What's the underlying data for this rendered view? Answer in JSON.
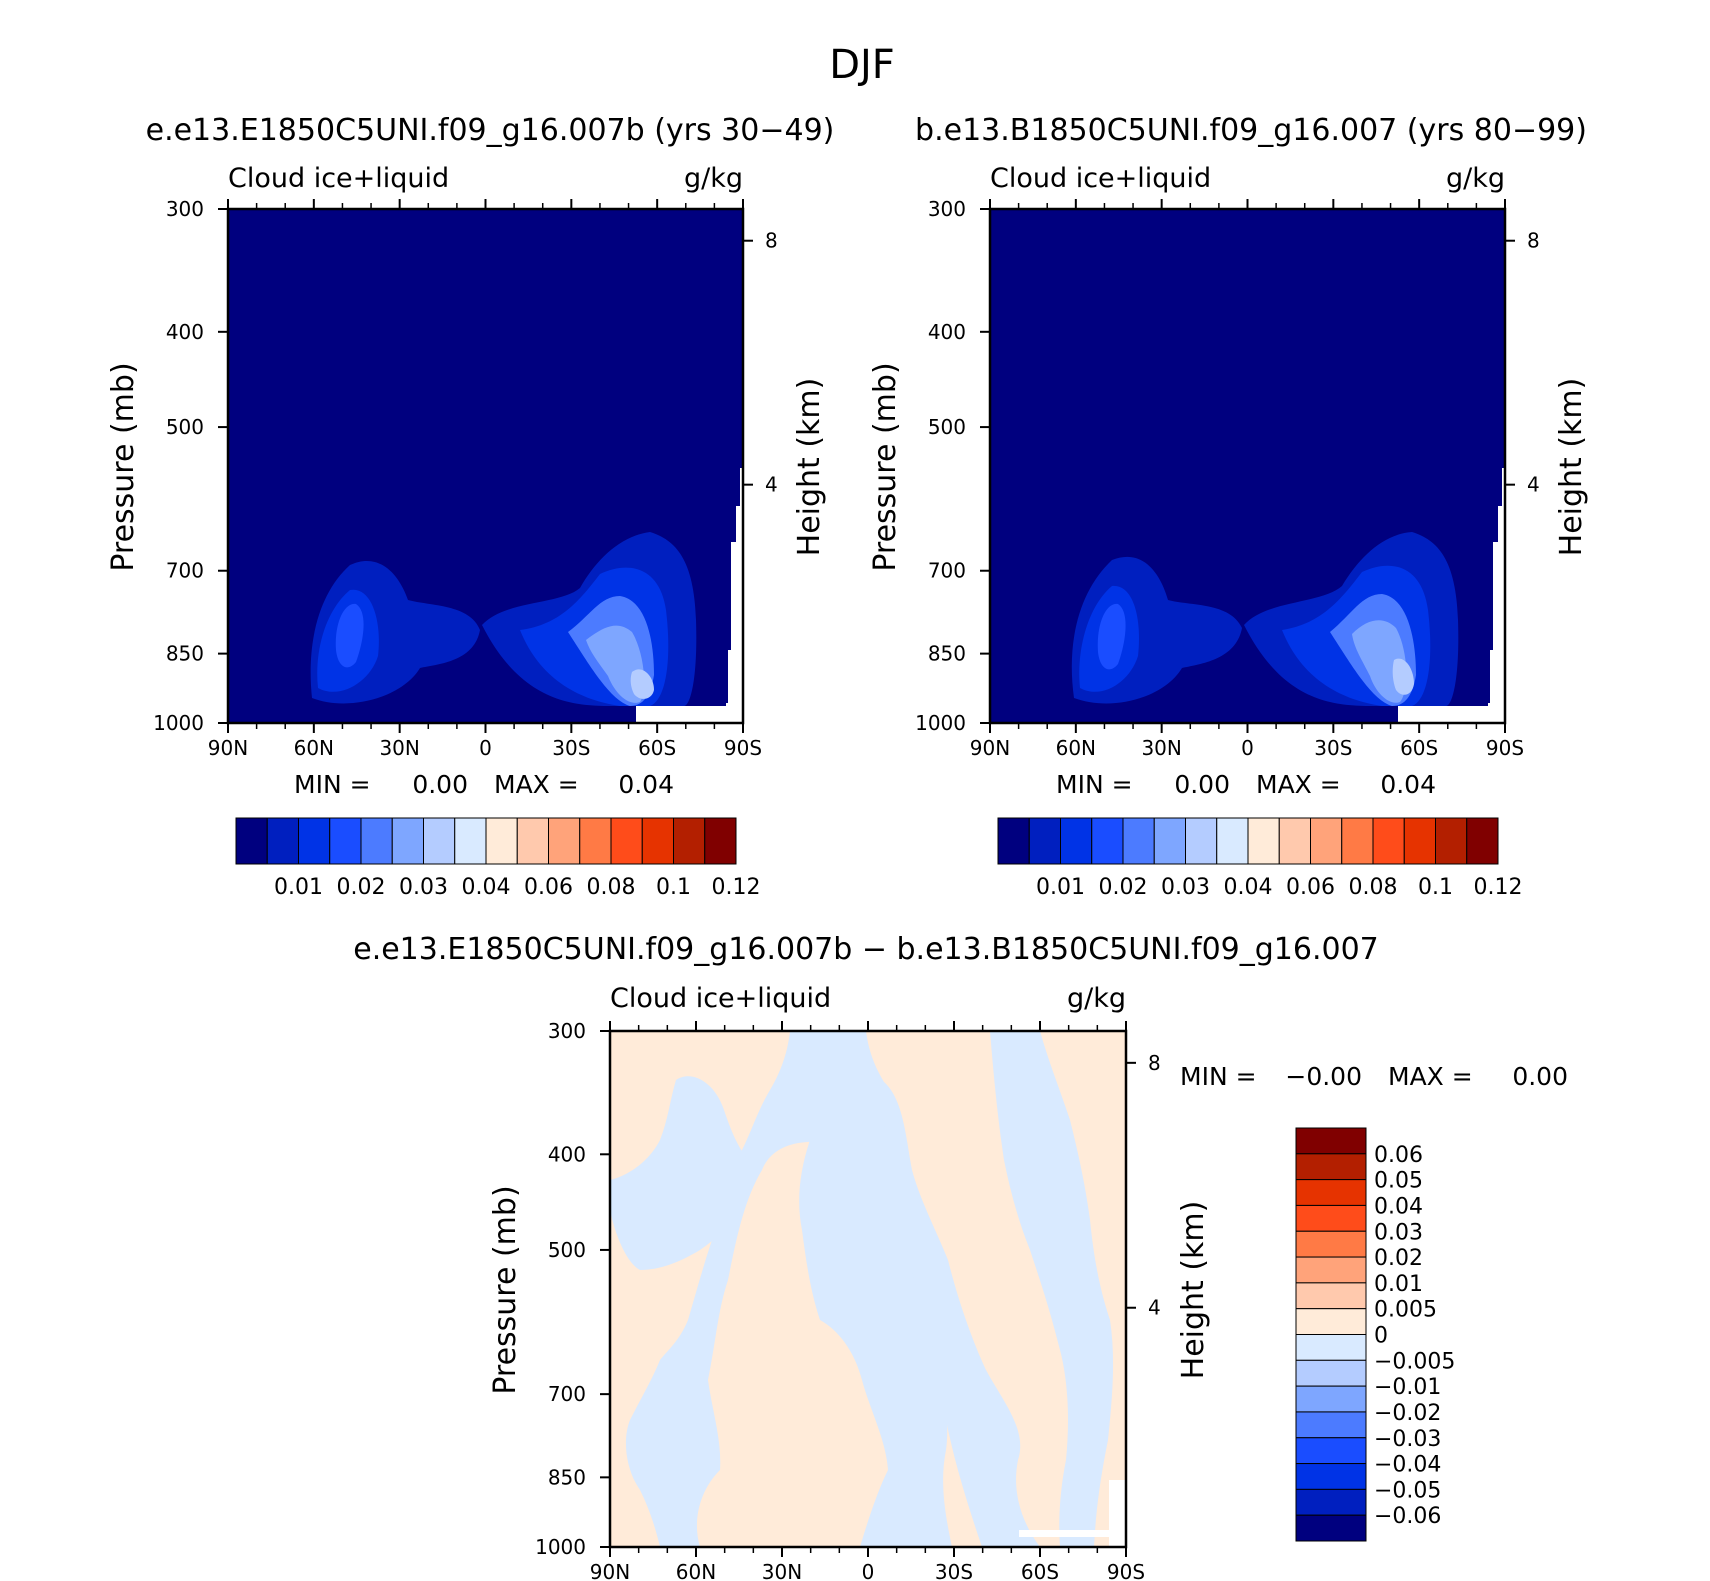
{
  "figure": {
    "title": "DJF"
  },
  "chart_data": [
    {
      "type": "heatmap",
      "panel_title": "e.e13.E1850C5UNI.f09_g16.007b (yrs 30−49)",
      "title": "Cloud ice+liquid",
      "units": "g/kg",
      "xlabel": "",
      "ylabel": "Pressure (mb)",
      "ylabel_right": "Height (km)",
      "x_ticks": [
        "90N",
        "60N",
        "30N",
        "0",
        "30S",
        "60S",
        "90S"
      ],
      "y_ticks": [
        300,
        400,
        500,
        700,
        850,
        1000
      ],
      "y_scale": "log",
      "ylim": [
        300,
        1000
      ],
      "height_ticks": [
        8,
        4
      ],
      "stats": {
        "min_label": "MIN =",
        "min": "0.00",
        "max_label": "MAX =",
        "max": "0.04"
      },
      "colorbar": {
        "orientation": "horizontal",
        "labels": [
          "0.01",
          "0.02",
          "0.03",
          "0.04",
          "0.06",
          "0.08",
          "0.1",
          "0.12"
        ],
        "colors": [
          "#00007f",
          "#001fbf",
          "#0033e6",
          "#1a4dff",
          "#4c7bff",
          "#7ea6ff",
          "#b4ccff",
          "#d9eaff",
          "#ffebd9",
          "#ffc9ad",
          "#ffa37a",
          "#ff7a45",
          "#ff4c1a",
          "#e63300",
          "#b31f00",
          "#800000"
        ]
      },
      "features": [
        {
          "lat": -50,
          "p": 900,
          "value": 0.04
        },
        {
          "lat": -45,
          "p": 865,
          "value": 0.035
        },
        {
          "lat": 43,
          "p": 870,
          "value": 0.02
        }
      ]
    },
    {
      "type": "heatmap",
      "panel_title": "b.e13.B1850C5UNI.f09_g16.007 (yrs 80−99)",
      "title": "Cloud ice+liquid",
      "units": "g/kg",
      "xlabel": "",
      "ylabel": "Pressure (mb)",
      "ylabel_right": "Height (km)",
      "x_ticks": [
        "90N",
        "60N",
        "30N",
        "0",
        "30S",
        "60S",
        "90S"
      ],
      "y_ticks": [
        300,
        400,
        500,
        700,
        850,
        1000
      ],
      "y_scale": "log",
      "ylim": [
        300,
        1000
      ],
      "height_ticks": [
        8,
        4
      ],
      "stats": {
        "min_label": "MIN =",
        "min": "0.00",
        "max_label": "MAX =",
        "max": "0.04"
      },
      "colorbar": {
        "orientation": "horizontal",
        "labels": [
          "0.01",
          "0.02",
          "0.03",
          "0.04",
          "0.06",
          "0.08",
          "0.1",
          "0.12"
        ],
        "colors": [
          "#00007f",
          "#001fbf",
          "#0033e6",
          "#1a4dff",
          "#4c7bff",
          "#7ea6ff",
          "#b4ccff",
          "#d9eaff",
          "#ffebd9",
          "#ffc9ad",
          "#ffa37a",
          "#ff7a45",
          "#ff4c1a",
          "#e63300",
          "#b31f00",
          "#800000"
        ]
      },
      "features": [
        {
          "lat": -50,
          "p": 900,
          "value": 0.035
        },
        {
          "lat": -40,
          "p": 865,
          "value": 0.035
        },
        {
          "lat": 45,
          "p": 880,
          "value": 0.02
        }
      ]
    },
    {
      "type": "heatmap",
      "panel_title": "e.e13.E1850C5UNI.f09_g16.007b − b.e13.B1850C5UNI.f09_g16.007",
      "title": "Cloud ice+liquid",
      "units": "g/kg",
      "xlabel": "",
      "ylabel": "Pressure (mb)",
      "ylabel_right": "Height (km)",
      "x_ticks": [
        "90N",
        "60N",
        "30N",
        "0",
        "30S",
        "60S",
        "90S"
      ],
      "y_ticks": [
        300,
        400,
        500,
        700,
        850,
        1000
      ],
      "y_scale": "log",
      "ylim": [
        300,
        1000
      ],
      "height_ticks": [
        8,
        4
      ],
      "stats": {
        "min_label": "MIN =",
        "min": "−0.00",
        "max_label": "MAX =",
        "max": "0.00"
      },
      "colorbar": {
        "orientation": "vertical",
        "labels": [
          "0.06",
          "0.05",
          "0.04",
          "0.03",
          "0.02",
          "0.01",
          "0.005",
          "0",
          "−0.005",
          "−0.01",
          "−0.02",
          "−0.03",
          "−0.04",
          "−0.05",
          "−0.06"
        ],
        "colors": [
          "#800000",
          "#b31f00",
          "#e63300",
          "#ff4c1a",
          "#ff7a45",
          "#ffa37a",
          "#ffc9ad",
          "#ffebd9",
          "#d9eaff",
          "#b4ccff",
          "#7ea6ff",
          "#4c7bff",
          "#1a4dff",
          "#0033e6",
          "#001fbf",
          "#00007f"
        ]
      },
      "dominant_values": [
        "0",
        "−0.005"
      ]
    }
  ]
}
